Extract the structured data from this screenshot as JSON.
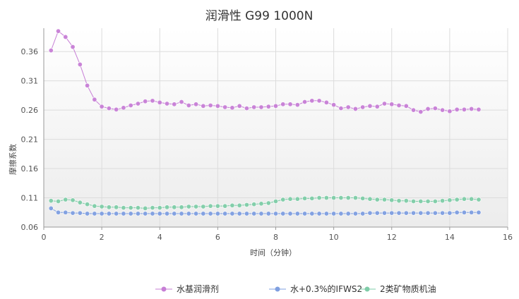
{
  "chart_data": {
    "type": "line",
    "title": "润滑性 G99 1000N",
    "xlabel": "时间（分钟）",
    "ylabel": "摩擦系数",
    "xlim": [
      0,
      16
    ],
    "ylim": [
      0.06,
      0.4
    ],
    "xticks": [
      0,
      2,
      4,
      6,
      8,
      10,
      12,
      14,
      16
    ],
    "yticks": [
      0.06,
      0.11,
      0.16,
      0.21,
      0.26,
      0.31,
      0.36
    ],
    "grid": true,
    "legend_position": "bottom",
    "series": [
      {
        "name": "水基润滑剂",
        "color": "#c77fd6",
        "x": [
          0.25,
          0.5,
          0.75,
          1.0,
          1.25,
          1.5,
          1.75,
          2.0,
          2.25,
          2.5,
          2.75,
          3.0,
          3.25,
          3.5,
          3.75,
          4.0,
          4.25,
          4.5,
          4.75,
          5.0,
          5.25,
          5.5,
          5.75,
          6.0,
          6.25,
          6.5,
          6.75,
          7.0,
          7.25,
          7.5,
          7.75,
          8.0,
          8.25,
          8.5,
          8.75,
          9.0,
          9.25,
          9.5,
          9.75,
          10.0,
          10.25,
          10.5,
          10.75,
          11.0,
          11.25,
          11.5,
          11.75,
          12.0,
          12.25,
          12.5,
          12.75,
          13.0,
          13.25,
          13.5,
          13.75,
          14.0,
          14.25,
          14.5,
          14.75,
          15.0
        ],
        "values": [
          0.362,
          0.395,
          0.385,
          0.368,
          0.338,
          0.302,
          0.278,
          0.266,
          0.263,
          0.261,
          0.264,
          0.268,
          0.271,
          0.275,
          0.276,
          0.273,
          0.271,
          0.27,
          0.274,
          0.268,
          0.27,
          0.267,
          0.268,
          0.267,
          0.265,
          0.264,
          0.267,
          0.263,
          0.265,
          0.265,
          0.266,
          0.267,
          0.27,
          0.27,
          0.269,
          0.274,
          0.276,
          0.276,
          0.273,
          0.269,
          0.263,
          0.265,
          0.262,
          0.265,
          0.267,
          0.266,
          0.271,
          0.27,
          0.268,
          0.267,
          0.26,
          0.257,
          0.262,
          0.263,
          0.26,
          0.258,
          0.261,
          0.261,
          0.262,
          0.261
        ]
      },
      {
        "name": "水+0.3%的IFWS2",
        "color": "#7f9fe0",
        "x": [
          0.25,
          0.5,
          0.75,
          1.0,
          1.25,
          1.5,
          1.75,
          2.0,
          2.25,
          2.5,
          2.75,
          3.0,
          3.25,
          3.5,
          3.75,
          4.0,
          4.25,
          4.5,
          4.75,
          5.0,
          5.25,
          5.5,
          5.75,
          6.0,
          6.25,
          6.5,
          6.75,
          7.0,
          7.25,
          7.5,
          7.75,
          8.0,
          8.25,
          8.5,
          8.75,
          9.0,
          9.25,
          9.5,
          9.75,
          10.0,
          10.25,
          10.5,
          10.75,
          11.0,
          11.25,
          11.5,
          11.75,
          12.0,
          12.25,
          12.5,
          12.75,
          13.0,
          13.25,
          13.5,
          13.75,
          14.0,
          14.25,
          14.5,
          14.75,
          15.0
        ],
        "values": [
          0.092,
          0.085,
          0.085,
          0.084,
          0.084,
          0.083,
          0.083,
          0.083,
          0.083,
          0.083,
          0.083,
          0.083,
          0.083,
          0.083,
          0.083,
          0.083,
          0.083,
          0.083,
          0.083,
          0.083,
          0.083,
          0.083,
          0.083,
          0.083,
          0.083,
          0.083,
          0.083,
          0.083,
          0.083,
          0.083,
          0.083,
          0.083,
          0.083,
          0.083,
          0.083,
          0.083,
          0.083,
          0.083,
          0.083,
          0.083,
          0.083,
          0.083,
          0.083,
          0.083,
          0.084,
          0.084,
          0.084,
          0.084,
          0.084,
          0.084,
          0.084,
          0.084,
          0.084,
          0.084,
          0.084,
          0.084,
          0.085,
          0.085,
          0.085,
          0.085
        ]
      },
      {
        "name": "2类矿物质机油",
        "color": "#7fcca8",
        "x": [
          0.25,
          0.5,
          0.75,
          1.0,
          1.25,
          1.5,
          1.75,
          2.0,
          2.25,
          2.5,
          2.75,
          3.0,
          3.25,
          3.5,
          3.75,
          4.0,
          4.25,
          4.5,
          4.75,
          5.0,
          5.25,
          5.5,
          5.75,
          6.0,
          6.25,
          6.5,
          6.75,
          7.0,
          7.25,
          7.5,
          7.75,
          8.0,
          8.25,
          8.5,
          8.75,
          9.0,
          9.25,
          9.5,
          9.75,
          10.0,
          10.25,
          10.5,
          10.75,
          11.0,
          11.25,
          11.5,
          11.75,
          12.0,
          12.25,
          12.5,
          12.75,
          13.0,
          13.25,
          13.5,
          13.75,
          14.0,
          14.25,
          14.5,
          14.75,
          15.0
        ],
        "values": [
          0.105,
          0.104,
          0.107,
          0.106,
          0.102,
          0.099,
          0.096,
          0.095,
          0.094,
          0.094,
          0.093,
          0.093,
          0.093,
          0.092,
          0.093,
          0.093,
          0.094,
          0.094,
          0.094,
          0.095,
          0.095,
          0.095,
          0.096,
          0.096,
          0.096,
          0.097,
          0.097,
          0.098,
          0.099,
          0.1,
          0.101,
          0.104,
          0.107,
          0.108,
          0.108,
          0.109,
          0.109,
          0.11,
          0.11,
          0.11,
          0.11,
          0.11,
          0.11,
          0.109,
          0.108,
          0.107,
          0.107,
          0.106,
          0.105,
          0.105,
          0.104,
          0.104,
          0.104,
          0.104,
          0.105,
          0.106,
          0.107,
          0.108,
          0.108,
          0.107
        ]
      }
    ]
  }
}
